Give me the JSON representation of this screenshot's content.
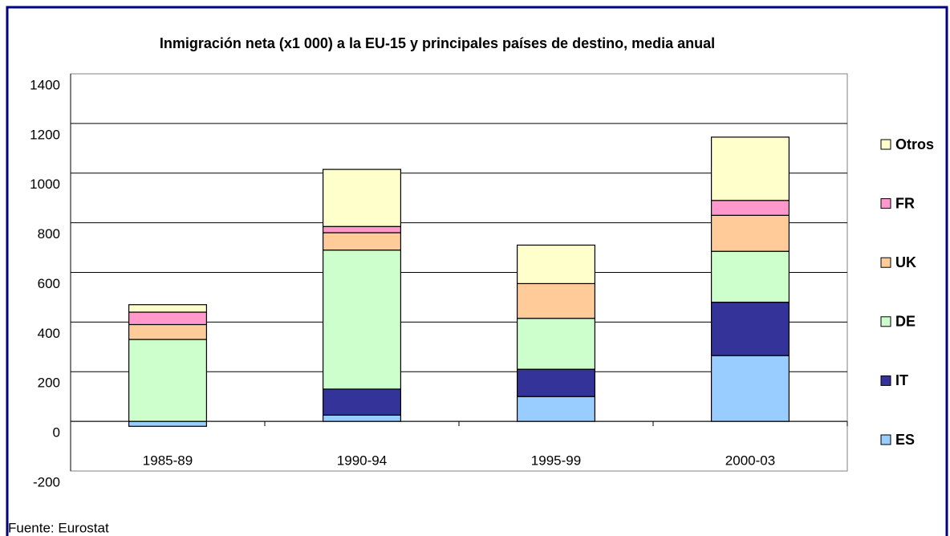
{
  "chart_data": {
    "type": "stacked_bar",
    "title": "Inmigración neta (x1 000) a la EU-15 y principales países de destino, media anual",
    "categories": [
      "1985-89",
      "1990-94",
      "1995-99",
      "2000-03"
    ],
    "series": [
      {
        "name": "ES",
        "color": "#99ccff",
        "values": [
          -20,
          25,
          100,
          265
        ]
      },
      {
        "name": "IT",
        "color": "#333399",
        "values": [
          0,
          105,
          110,
          215
        ]
      },
      {
        "name": "DE",
        "color": "#ccffcc",
        "values": [
          330,
          560,
          205,
          205
        ]
      },
      {
        "name": "UK",
        "color": "#ffcc99",
        "values": [
          60,
          70,
          140,
          145
        ]
      },
      {
        "name": "FR",
        "color": "#ff99cc",
        "values": [
          50,
          25,
          0,
          60
        ]
      },
      {
        "name": "Otros",
        "color": "#ffffcc",
        "values": [
          30,
          230,
          155,
          255
        ]
      }
    ],
    "ylim": [
      -200,
      1400
    ],
    "yticks": [
      -200,
      0,
      200,
      400,
      600,
      800,
      1000,
      1200,
      1400
    ],
    "grid": true,
    "legend": "right",
    "footnote": "Fuente: Eurostat"
  }
}
